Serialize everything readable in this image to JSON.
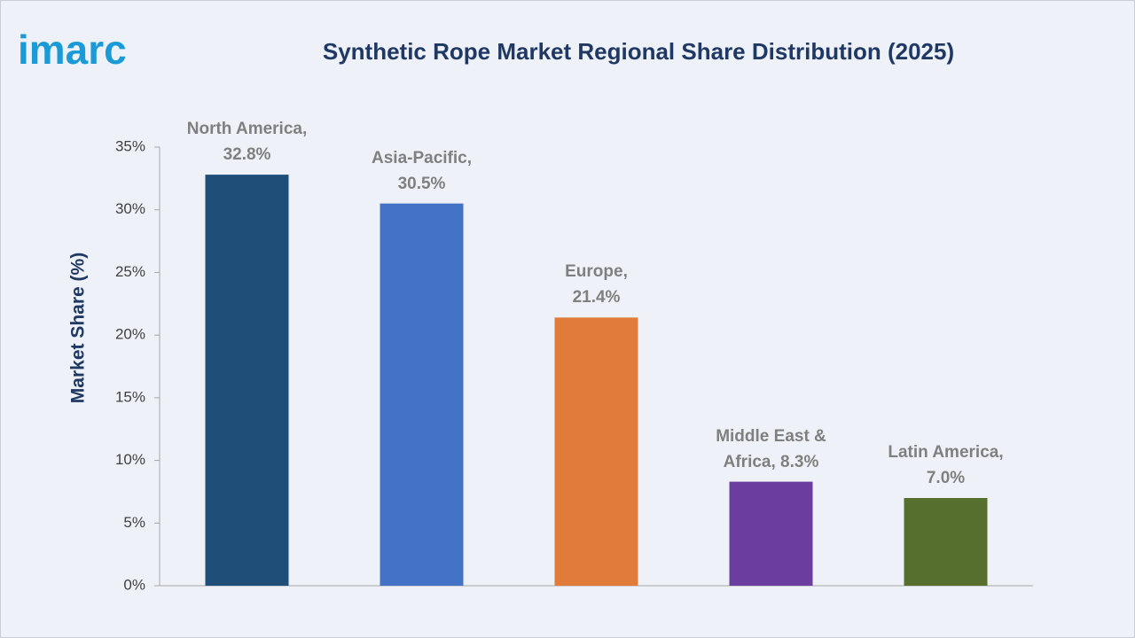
{
  "logo": "imarc",
  "chart_data": {
    "type": "bar",
    "title": "Synthetic Rope Market Regional Share Distribution (2025)",
    "y_label": "Market Share (%)",
    "categories": [
      "North America",
      "Asia-Pacific",
      "Europe",
      "Middle East & Africa",
      "Latin America"
    ],
    "values": [
      32.8,
      30.5,
      21.4,
      8.3,
      7.0
    ],
    "value_labels": [
      "North America,\n32.8%",
      "Asia-Pacific,\n30.5%",
      "Europe,\n21.4%",
      "Middle East &\nAfrica, 8.3%",
      "Latin America,\n7.0%"
    ],
    "colors": [
      "#1f4e79",
      "#4472c4",
      "#e07b39",
      "#6b3d9e",
      "#566e2e"
    ],
    "ylim": [
      0,
      35
    ],
    "yticks": [
      {
        "value": 0,
        "label": "0%"
      },
      {
        "value": 5,
        "label": "5%"
      },
      {
        "value": 10,
        "label": "10%"
      },
      {
        "value": 15,
        "label": "15%"
      },
      {
        "value": 20,
        "label": "20%"
      },
      {
        "value": 25,
        "label": "25%"
      },
      {
        "value": 30,
        "label": "30%"
      },
      {
        "value": 35,
        "label": "35%"
      }
    ],
    "grid": false
  }
}
